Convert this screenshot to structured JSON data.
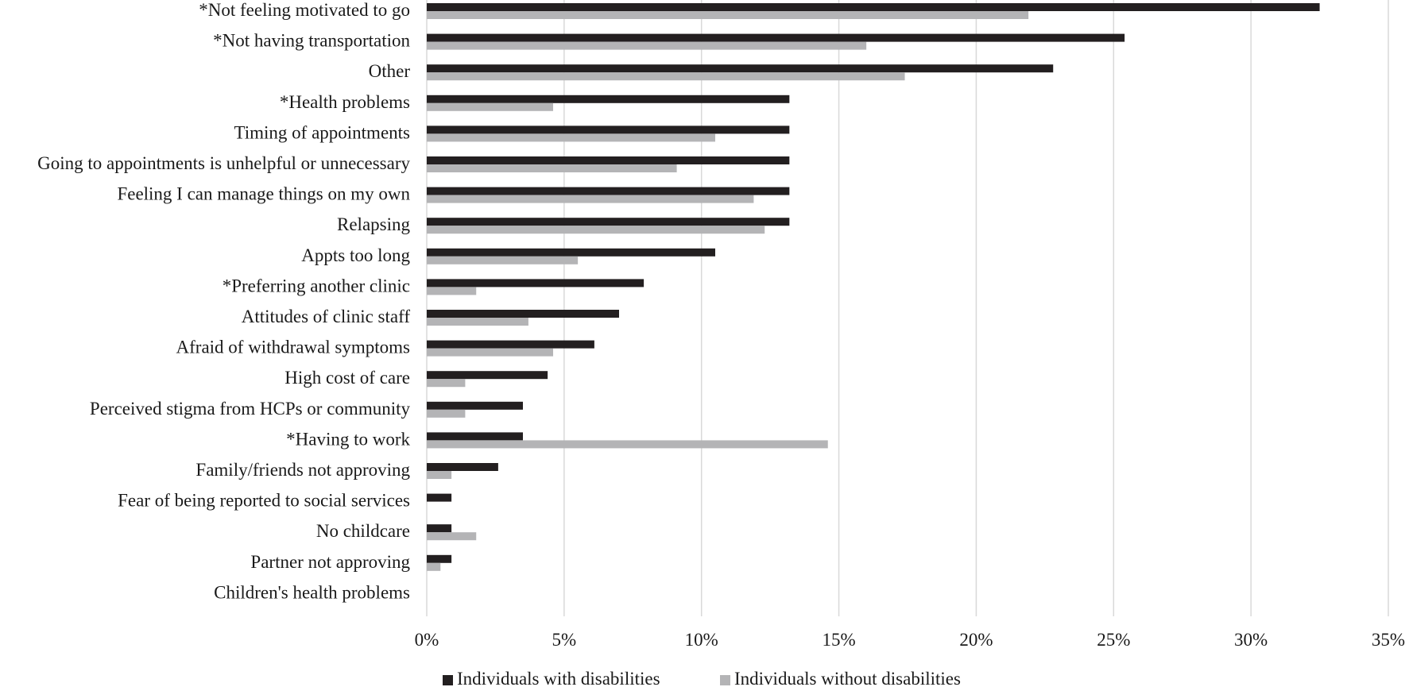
{
  "chart_data": {
    "type": "bar",
    "orientation": "horizontal",
    "categories": [
      "*Not feeling motivated to go",
      "*Not having transportation",
      "Other",
      "*Health problems",
      "Timing of appointments",
      "Going to appointments is unhelpful or unnecessary",
      "Feeling I can manage things on my own",
      "Relapsing",
      "Appts too long",
      "*Preferring another clinic",
      "Attitudes of clinic staff",
      "Afraid of withdrawal symptoms",
      "High cost of care",
      "Perceived stigma from HCPs or community",
      "*Having to work",
      "Family/friends not approving",
      "Fear of being reported to social services",
      "No childcare",
      "Partner not approving",
      "Children's health problems"
    ],
    "series": [
      {
        "name": "Individuals with disabilities",
        "color": "#231f20",
        "values": [
          32.5,
          25.4,
          22.8,
          13.2,
          13.2,
          13.2,
          13.2,
          13.2,
          10.5,
          7.9,
          7.0,
          6.1,
          4.4,
          3.5,
          3.5,
          2.6,
          0.9,
          0.9,
          0.9,
          0
        ]
      },
      {
        "name": "Individuals without disabilities",
        "color": "#b4b4b6",
        "values": [
          21.9,
          16.0,
          17.4,
          4.6,
          10.5,
          9.1,
          11.9,
          12.3,
          5.5,
          1.8,
          3.7,
          4.6,
          1.4,
          1.4,
          14.6,
          0.9,
          0,
          1.8,
          0.5,
          0
        ]
      }
    ],
    "xlim": [
      0,
      35
    ],
    "ticks": [
      0,
      5,
      10,
      15,
      20,
      25,
      30,
      35
    ],
    "tick_labels": [
      "0%",
      "5%",
      "10%",
      "15%",
      "20%",
      "25%",
      "30%",
      "35%"
    ],
    "grid": true,
    "legend_position": "bottom"
  }
}
